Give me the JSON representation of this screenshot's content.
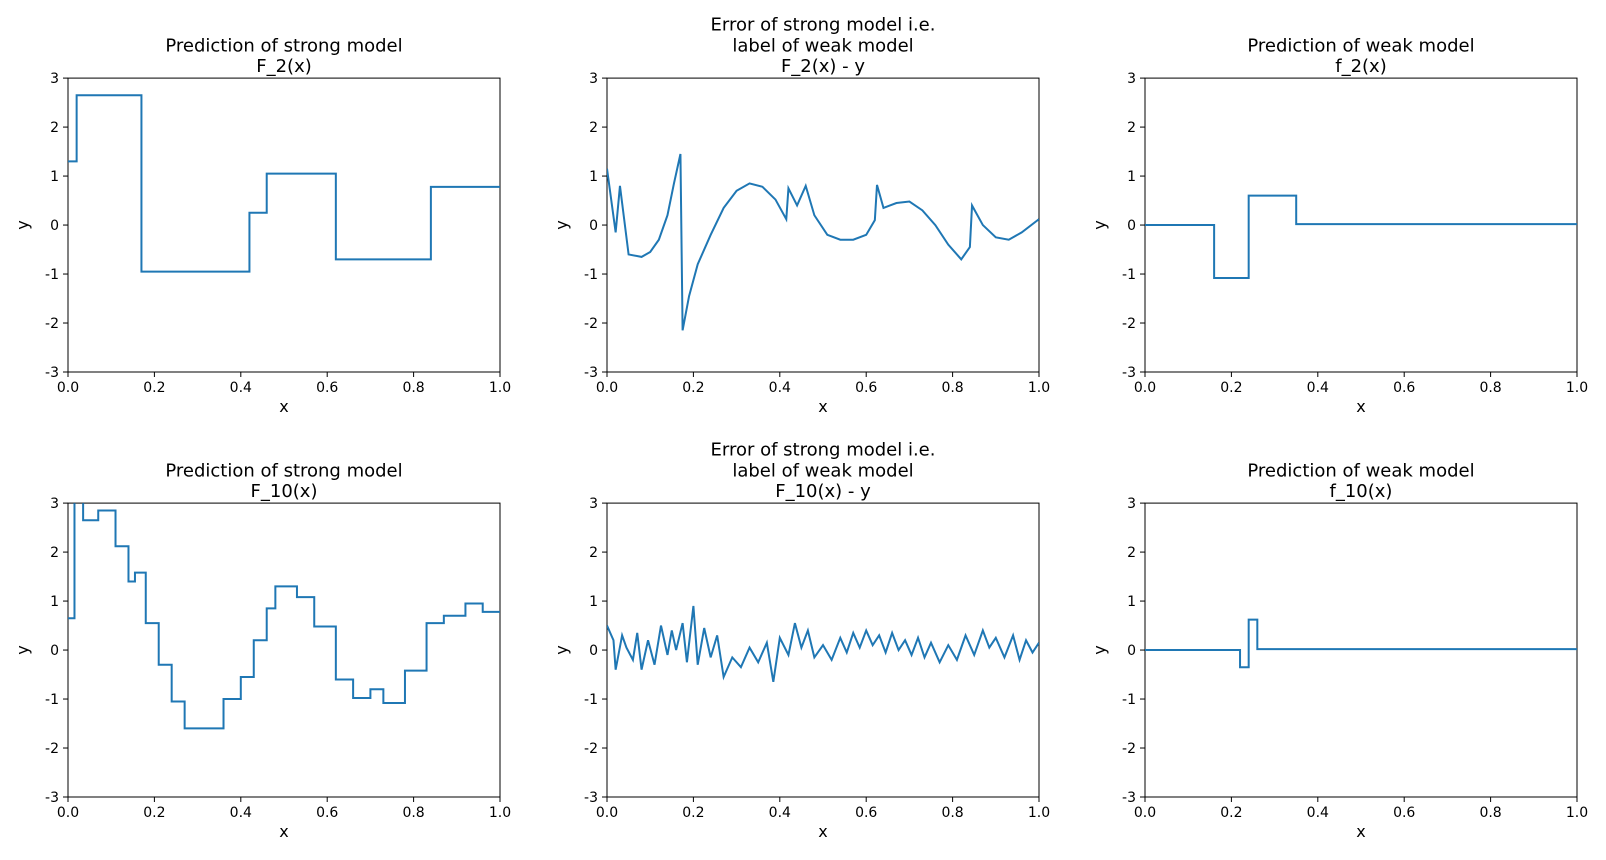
{
  "figure": {
    "background_color": "#ffffff",
    "line_color": "#1f77b4",
    "axis_color": "#000000",
    "title_fontsize": 18,
    "label_fontsize": 16,
    "tick_fontsize": 14,
    "line_width": 2,
    "xlim": [
      0.0,
      1.0
    ],
    "ylim": [
      -3,
      3
    ],
    "xticks": [
      0.0,
      0.2,
      0.4,
      0.6,
      0.8,
      1.0
    ],
    "yticks": [
      -3,
      -2,
      -1,
      0,
      1,
      2,
      3
    ],
    "xlabel": "x",
    "ylabel": "y"
  },
  "panels": [
    {
      "id": "p00",
      "title_lines": [
        "Prediction of strong model",
        "F_2(x)"
      ],
      "series": [
        {
          "x": 0.0,
          "y": 1.3
        },
        {
          "x": 0.02,
          "y": 1.3
        },
        {
          "x": 0.02,
          "y": 2.65
        },
        {
          "x": 0.17,
          "y": 2.65
        },
        {
          "x": 0.17,
          "y": -0.95
        },
        {
          "x": 0.42,
          "y": -0.95
        },
        {
          "x": 0.42,
          "y": 0.25
        },
        {
          "x": 0.46,
          "y": 0.25
        },
        {
          "x": 0.46,
          "y": 1.05
        },
        {
          "x": 0.62,
          "y": 1.05
        },
        {
          "x": 0.62,
          "y": -0.7
        },
        {
          "x": 0.84,
          "y": -0.7
        },
        {
          "x": 0.84,
          "y": 0.78
        },
        {
          "x": 1.0,
          "y": 0.78
        }
      ]
    },
    {
      "id": "p01",
      "title_lines": [
        "Error of strong model i.e.",
        "label of weak model",
        "F_2(x) - y"
      ],
      "series": [
        {
          "x": 0.0,
          "y": 1.15
        },
        {
          "x": 0.02,
          "y": -0.15
        },
        {
          "x": 0.03,
          "y": 0.8
        },
        {
          "x": 0.05,
          "y": -0.6
        },
        {
          "x": 0.08,
          "y": -0.65
        },
        {
          "x": 0.1,
          "y": -0.55
        },
        {
          "x": 0.12,
          "y": -0.3
        },
        {
          "x": 0.14,
          "y": 0.2
        },
        {
          "x": 0.155,
          "y": 0.85
        },
        {
          "x": 0.17,
          "y": 1.45
        },
        {
          "x": 0.175,
          "y": -2.15
        },
        {
          "x": 0.19,
          "y": -1.45
        },
        {
          "x": 0.21,
          "y": -0.8
        },
        {
          "x": 0.24,
          "y": -0.2
        },
        {
          "x": 0.27,
          "y": 0.35
        },
        {
          "x": 0.3,
          "y": 0.7
        },
        {
          "x": 0.33,
          "y": 0.85
        },
        {
          "x": 0.36,
          "y": 0.78
        },
        {
          "x": 0.39,
          "y": 0.52
        },
        {
          "x": 0.415,
          "y": 0.12
        },
        {
          "x": 0.42,
          "y": 0.75
        },
        {
          "x": 0.44,
          "y": 0.4
        },
        {
          "x": 0.46,
          "y": 0.8
        },
        {
          "x": 0.48,
          "y": 0.2
        },
        {
          "x": 0.51,
          "y": -0.2
        },
        {
          "x": 0.54,
          "y": -0.3
        },
        {
          "x": 0.57,
          "y": -0.3
        },
        {
          "x": 0.6,
          "y": -0.2
        },
        {
          "x": 0.62,
          "y": 0.1
        },
        {
          "x": 0.625,
          "y": 0.82
        },
        {
          "x": 0.64,
          "y": 0.35
        },
        {
          "x": 0.67,
          "y": 0.45
        },
        {
          "x": 0.7,
          "y": 0.48
        },
        {
          "x": 0.73,
          "y": 0.3
        },
        {
          "x": 0.76,
          "y": 0.0
        },
        {
          "x": 0.79,
          "y": -0.4
        },
        {
          "x": 0.82,
          "y": -0.7
        },
        {
          "x": 0.84,
          "y": -0.45
        },
        {
          "x": 0.845,
          "y": 0.4
        },
        {
          "x": 0.87,
          "y": 0.0
        },
        {
          "x": 0.9,
          "y": -0.25
        },
        {
          "x": 0.93,
          "y": -0.3
        },
        {
          "x": 0.96,
          "y": -0.15
        },
        {
          "x": 1.0,
          "y": 0.12
        }
      ]
    },
    {
      "id": "p02",
      "title_lines": [
        "Prediction of weak model",
        "f_2(x)"
      ],
      "series": [
        {
          "x": 0.0,
          "y": 0.0
        },
        {
          "x": 0.16,
          "y": 0.0
        },
        {
          "x": 0.16,
          "y": -1.08
        },
        {
          "x": 0.24,
          "y": -1.08
        },
        {
          "x": 0.24,
          "y": 0.6
        },
        {
          "x": 0.35,
          "y": 0.6
        },
        {
          "x": 0.35,
          "y": 0.02
        },
        {
          "x": 1.0,
          "y": 0.02
        }
      ]
    },
    {
      "id": "p10",
      "title_lines": [
        "Prediction of strong model",
        "F_10(x)"
      ],
      "series": [
        {
          "x": 0.0,
          "y": 0.65
        },
        {
          "x": 0.015,
          "y": 0.65
        },
        {
          "x": 0.015,
          "y": 3.1
        },
        {
          "x": 0.035,
          "y": 3.1
        },
        {
          "x": 0.035,
          "y": 2.65
        },
        {
          "x": 0.07,
          "y": 2.65
        },
        {
          "x": 0.07,
          "y": 2.85
        },
        {
          "x": 0.11,
          "y": 2.85
        },
        {
          "x": 0.11,
          "y": 2.12
        },
        {
          "x": 0.14,
          "y": 2.12
        },
        {
          "x": 0.14,
          "y": 1.4
        },
        {
          "x": 0.155,
          "y": 1.4
        },
        {
          "x": 0.155,
          "y": 1.58
        },
        {
          "x": 0.18,
          "y": 1.58
        },
        {
          "x": 0.18,
          "y": 0.55
        },
        {
          "x": 0.21,
          "y": 0.55
        },
        {
          "x": 0.21,
          "y": -0.3
        },
        {
          "x": 0.24,
          "y": -0.3
        },
        {
          "x": 0.24,
          "y": -1.05
        },
        {
          "x": 0.27,
          "y": -1.05
        },
        {
          "x": 0.27,
          "y": -1.6
        },
        {
          "x": 0.36,
          "y": -1.6
        },
        {
          "x": 0.36,
          "y": -1.0
        },
        {
          "x": 0.4,
          "y": -1.0
        },
        {
          "x": 0.4,
          "y": -0.55
        },
        {
          "x": 0.43,
          "y": -0.55
        },
        {
          "x": 0.43,
          "y": 0.2
        },
        {
          "x": 0.46,
          "y": 0.2
        },
        {
          "x": 0.46,
          "y": 0.85
        },
        {
          "x": 0.48,
          "y": 0.85
        },
        {
          "x": 0.48,
          "y": 1.3
        },
        {
          "x": 0.53,
          "y": 1.3
        },
        {
          "x": 0.53,
          "y": 1.08
        },
        {
          "x": 0.57,
          "y": 1.08
        },
        {
          "x": 0.57,
          "y": 0.48
        },
        {
          "x": 0.62,
          "y": 0.48
        },
        {
          "x": 0.62,
          "y": -0.6
        },
        {
          "x": 0.66,
          "y": -0.6
        },
        {
          "x": 0.66,
          "y": -0.98
        },
        {
          "x": 0.7,
          "y": -0.98
        },
        {
          "x": 0.7,
          "y": -0.8
        },
        {
          "x": 0.73,
          "y": -0.8
        },
        {
          "x": 0.73,
          "y": -1.08
        },
        {
          "x": 0.78,
          "y": -1.08
        },
        {
          "x": 0.78,
          "y": -0.42
        },
        {
          "x": 0.83,
          "y": -0.42
        },
        {
          "x": 0.83,
          "y": 0.55
        },
        {
          "x": 0.87,
          "y": 0.55
        },
        {
          "x": 0.87,
          "y": 0.7
        },
        {
          "x": 0.92,
          "y": 0.7
        },
        {
          "x": 0.92,
          "y": 0.95
        },
        {
          "x": 0.96,
          "y": 0.95
        },
        {
          "x": 0.96,
          "y": 0.78
        },
        {
          "x": 1.0,
          "y": 0.78
        }
      ]
    },
    {
      "id": "p11",
      "title_lines": [
        "Error of strong model i.e.",
        "label of weak model",
        "F_10(x) - y"
      ],
      "series": [
        {
          "x": 0.0,
          "y": 0.5
        },
        {
          "x": 0.015,
          "y": 0.2
        },
        {
          "x": 0.02,
          "y": -0.4
        },
        {
          "x": 0.035,
          "y": 0.3
        },
        {
          "x": 0.045,
          "y": 0.05
        },
        {
          "x": 0.06,
          "y": -0.2
        },
        {
          "x": 0.07,
          "y": 0.35
        },
        {
          "x": 0.08,
          "y": -0.4
        },
        {
          "x": 0.095,
          "y": 0.2
        },
        {
          "x": 0.11,
          "y": -0.3
        },
        {
          "x": 0.125,
          "y": 0.5
        },
        {
          "x": 0.14,
          "y": -0.1
        },
        {
          "x": 0.15,
          "y": 0.4
        },
        {
          "x": 0.16,
          "y": 0.0
        },
        {
          "x": 0.175,
          "y": 0.55
        },
        {
          "x": 0.185,
          "y": -0.25
        },
        {
          "x": 0.2,
          "y": 0.9
        },
        {
          "x": 0.21,
          "y": -0.3
        },
        {
          "x": 0.225,
          "y": 0.45
        },
        {
          "x": 0.24,
          "y": -0.15
        },
        {
          "x": 0.255,
          "y": 0.3
        },
        {
          "x": 0.27,
          "y": -0.55
        },
        {
          "x": 0.29,
          "y": -0.15
        },
        {
          "x": 0.31,
          "y": -0.35
        },
        {
          "x": 0.33,
          "y": 0.05
        },
        {
          "x": 0.35,
          "y": -0.25
        },
        {
          "x": 0.37,
          "y": 0.15
        },
        {
          "x": 0.385,
          "y": -0.65
        },
        {
          "x": 0.4,
          "y": 0.25
        },
        {
          "x": 0.42,
          "y": -0.1
        },
        {
          "x": 0.435,
          "y": 0.55
        },
        {
          "x": 0.45,
          "y": 0.05
        },
        {
          "x": 0.465,
          "y": 0.4
        },
        {
          "x": 0.48,
          "y": -0.15
        },
        {
          "x": 0.5,
          "y": 0.1
        },
        {
          "x": 0.52,
          "y": -0.2
        },
        {
          "x": 0.54,
          "y": 0.25
        },
        {
          "x": 0.555,
          "y": -0.05
        },
        {
          "x": 0.57,
          "y": 0.35
        },
        {
          "x": 0.585,
          "y": 0.05
        },
        {
          "x": 0.6,
          "y": 0.4
        },
        {
          "x": 0.615,
          "y": 0.1
        },
        {
          "x": 0.63,
          "y": 0.3
        },
        {
          "x": 0.645,
          "y": -0.05
        },
        {
          "x": 0.66,
          "y": 0.35
        },
        {
          "x": 0.675,
          "y": 0.0
        },
        {
          "x": 0.69,
          "y": 0.2
        },
        {
          "x": 0.705,
          "y": -0.1
        },
        {
          "x": 0.72,
          "y": 0.25
        },
        {
          "x": 0.735,
          "y": -0.15
        },
        {
          "x": 0.75,
          "y": 0.15
        },
        {
          "x": 0.77,
          "y": -0.25
        },
        {
          "x": 0.79,
          "y": 0.1
        },
        {
          "x": 0.81,
          "y": -0.2
        },
        {
          "x": 0.83,
          "y": 0.3
        },
        {
          "x": 0.85,
          "y": -0.1
        },
        {
          "x": 0.87,
          "y": 0.4
        },
        {
          "x": 0.885,
          "y": 0.05
        },
        {
          "x": 0.9,
          "y": 0.25
        },
        {
          "x": 0.92,
          "y": -0.15
        },
        {
          "x": 0.94,
          "y": 0.3
        },
        {
          "x": 0.955,
          "y": -0.2
        },
        {
          "x": 0.97,
          "y": 0.2
        },
        {
          "x": 0.985,
          "y": -0.05
        },
        {
          "x": 1.0,
          "y": 0.15
        }
      ]
    },
    {
      "id": "p12",
      "title_lines": [
        "Prediction of weak model",
        "f_10(x)"
      ],
      "series": [
        {
          "x": 0.0,
          "y": 0.0
        },
        {
          "x": 0.22,
          "y": 0.0
        },
        {
          "x": 0.22,
          "y": -0.35
        },
        {
          "x": 0.24,
          "y": -0.35
        },
        {
          "x": 0.24,
          "y": 0.62
        },
        {
          "x": 0.26,
          "y": 0.62
        },
        {
          "x": 0.26,
          "y": 0.02
        },
        {
          "x": 1.0,
          "y": 0.02
        }
      ]
    }
  ]
}
